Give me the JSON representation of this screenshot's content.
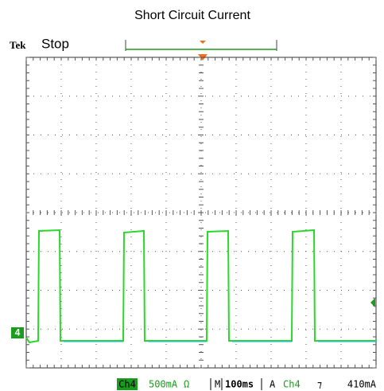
{
  "title": "Short Circuit Current",
  "status": {
    "brand": "Tek",
    "state": "Stop"
  },
  "channel_marker": "4",
  "readout": {
    "channel": "Ch4",
    "scale": "500mA",
    "unit_symbol": "Ω",
    "timebase_label": "M",
    "timebase": "100ms",
    "trigger_mode": "A",
    "trigger_source": "Ch4",
    "trigger_slope": "⁊",
    "trigger_level": "410mA"
  }
}
